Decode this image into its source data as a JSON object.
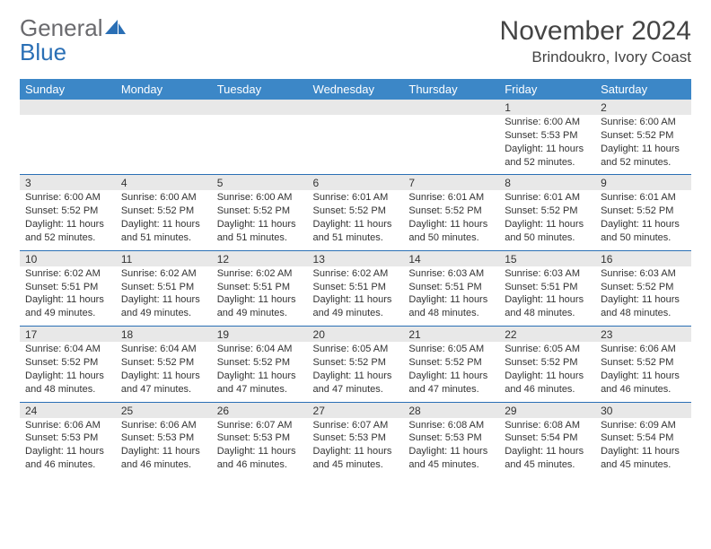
{
  "logo": {
    "text1": "General",
    "text2": "Blue"
  },
  "title": "November 2024",
  "location": "Brindoukro, Ivory Coast",
  "colors": {
    "header_bg": "#3c87c7",
    "header_text": "#ffffff",
    "date_bg": "#e8e8e8",
    "rule": "#2a6fb5",
    "body_text": "#333333",
    "logo_gray": "#6a6a6e",
    "logo_blue": "#2a6fb5"
  },
  "day_names": [
    "Sunday",
    "Monday",
    "Tuesday",
    "Wednesday",
    "Thursday",
    "Friday",
    "Saturday"
  ],
  "weeks": [
    [
      null,
      null,
      null,
      null,
      null,
      {
        "d": "1",
        "sr": "6:00 AM",
        "ss": "5:53 PM",
        "dl": "11 hours and 52 minutes."
      },
      {
        "d": "2",
        "sr": "6:00 AM",
        "ss": "5:52 PM",
        "dl": "11 hours and 52 minutes."
      }
    ],
    [
      {
        "d": "3",
        "sr": "6:00 AM",
        "ss": "5:52 PM",
        "dl": "11 hours and 52 minutes."
      },
      {
        "d": "4",
        "sr": "6:00 AM",
        "ss": "5:52 PM",
        "dl": "11 hours and 51 minutes."
      },
      {
        "d": "5",
        "sr": "6:00 AM",
        "ss": "5:52 PM",
        "dl": "11 hours and 51 minutes."
      },
      {
        "d": "6",
        "sr": "6:01 AM",
        "ss": "5:52 PM",
        "dl": "11 hours and 51 minutes."
      },
      {
        "d": "7",
        "sr": "6:01 AM",
        "ss": "5:52 PM",
        "dl": "11 hours and 50 minutes."
      },
      {
        "d": "8",
        "sr": "6:01 AM",
        "ss": "5:52 PM",
        "dl": "11 hours and 50 minutes."
      },
      {
        "d": "9",
        "sr": "6:01 AM",
        "ss": "5:52 PM",
        "dl": "11 hours and 50 minutes."
      }
    ],
    [
      {
        "d": "10",
        "sr": "6:02 AM",
        "ss": "5:51 PM",
        "dl": "11 hours and 49 minutes."
      },
      {
        "d": "11",
        "sr": "6:02 AM",
        "ss": "5:51 PM",
        "dl": "11 hours and 49 minutes."
      },
      {
        "d": "12",
        "sr": "6:02 AM",
        "ss": "5:51 PM",
        "dl": "11 hours and 49 minutes."
      },
      {
        "d": "13",
        "sr": "6:02 AM",
        "ss": "5:51 PM",
        "dl": "11 hours and 49 minutes."
      },
      {
        "d": "14",
        "sr": "6:03 AM",
        "ss": "5:51 PM",
        "dl": "11 hours and 48 minutes."
      },
      {
        "d": "15",
        "sr": "6:03 AM",
        "ss": "5:51 PM",
        "dl": "11 hours and 48 minutes."
      },
      {
        "d": "16",
        "sr": "6:03 AM",
        "ss": "5:52 PM",
        "dl": "11 hours and 48 minutes."
      }
    ],
    [
      {
        "d": "17",
        "sr": "6:04 AM",
        "ss": "5:52 PM",
        "dl": "11 hours and 48 minutes."
      },
      {
        "d": "18",
        "sr": "6:04 AM",
        "ss": "5:52 PM",
        "dl": "11 hours and 47 minutes."
      },
      {
        "d": "19",
        "sr": "6:04 AM",
        "ss": "5:52 PM",
        "dl": "11 hours and 47 minutes."
      },
      {
        "d": "20",
        "sr": "6:05 AM",
        "ss": "5:52 PM",
        "dl": "11 hours and 47 minutes."
      },
      {
        "d": "21",
        "sr": "6:05 AM",
        "ss": "5:52 PM",
        "dl": "11 hours and 47 minutes."
      },
      {
        "d": "22",
        "sr": "6:05 AM",
        "ss": "5:52 PM",
        "dl": "11 hours and 46 minutes."
      },
      {
        "d": "23",
        "sr": "6:06 AM",
        "ss": "5:52 PM",
        "dl": "11 hours and 46 minutes."
      }
    ],
    [
      {
        "d": "24",
        "sr": "6:06 AM",
        "ss": "5:53 PM",
        "dl": "11 hours and 46 minutes."
      },
      {
        "d": "25",
        "sr": "6:06 AM",
        "ss": "5:53 PM",
        "dl": "11 hours and 46 minutes."
      },
      {
        "d": "26",
        "sr": "6:07 AM",
        "ss": "5:53 PM",
        "dl": "11 hours and 46 minutes."
      },
      {
        "d": "27",
        "sr": "6:07 AM",
        "ss": "5:53 PM",
        "dl": "11 hours and 45 minutes."
      },
      {
        "d": "28",
        "sr": "6:08 AM",
        "ss": "5:53 PM",
        "dl": "11 hours and 45 minutes."
      },
      {
        "d": "29",
        "sr": "6:08 AM",
        "ss": "5:54 PM",
        "dl": "11 hours and 45 minutes."
      },
      {
        "d": "30",
        "sr": "6:09 AM",
        "ss": "5:54 PM",
        "dl": "11 hours and 45 minutes."
      }
    ]
  ],
  "labels": {
    "sunrise": "Sunrise:",
    "sunset": "Sunset:",
    "daylight": "Daylight:"
  }
}
